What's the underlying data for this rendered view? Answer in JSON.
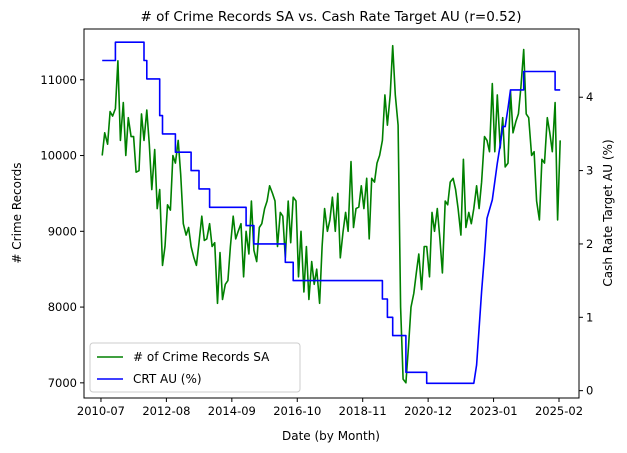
{
  "chart_data": {
    "type": "line",
    "title": "# of Crime Records SA vs. Cash Rate Target AU (r=0.52)",
    "xlabel": "Date (by Month)",
    "ylabel": "# Crime Records",
    "y2label": "Cash Rate Target AU (%)",
    "x_ticks": [
      "2010-07",
      "2012-08",
      "2014-09",
      "2016-10",
      "2018-11",
      "2020-12",
      "2023-01",
      "2025-02"
    ],
    "y_ticks": [
      7000,
      8000,
      9000,
      10000,
      11000
    ],
    "y2_ticks": [
      0,
      1,
      2,
      3,
      4
    ],
    "ylim": [
      6800,
      11670
    ],
    "y2lim": [
      -0.1,
      4.93
    ],
    "legend_position": "lower-left",
    "series": [
      {
        "name": "# of Crime Records SA",
        "color": "#008000",
        "axis": "left",
        "x": [
          2010.54,
          2010.62,
          2010.71,
          2010.79,
          2010.87,
          2010.96,
          2011.04,
          2011.12,
          2011.21,
          2011.29,
          2011.37,
          2011.46,
          2011.54,
          2011.62,
          2011.71,
          2011.79,
          2011.87,
          2011.96,
          2012.04,
          2012.12,
          2012.21,
          2012.29,
          2012.37,
          2012.46,
          2012.54,
          2012.62,
          2012.71,
          2012.79,
          2012.87,
          2012.96,
          2013.04,
          2013.12,
          2013.21,
          2013.29,
          2013.37,
          2013.46,
          2013.54,
          2013.62,
          2013.71,
          2013.79,
          2013.87,
          2013.96,
          2014.04,
          2014.12,
          2014.21,
          2014.29,
          2014.37,
          2014.46,
          2014.54,
          2014.62,
          2014.71,
          2014.79,
          2014.87,
          2014.96,
          2015.04,
          2015.12,
          2015.21,
          2015.29,
          2015.37,
          2015.46,
          2015.54,
          2015.62,
          2015.71,
          2015.79,
          2015.87,
          2015.96,
          2016.04,
          2016.12,
          2016.21,
          2016.29,
          2016.37,
          2016.46,
          2016.54,
          2016.62,
          2016.71,
          2016.79,
          2016.87,
          2016.96,
          2017.04,
          2017.12,
          2017.21,
          2017.29,
          2017.37,
          2017.46,
          2017.54,
          2017.62,
          2017.71,
          2017.79,
          2017.87,
          2017.96,
          2018.04,
          2018.12,
          2018.21,
          2018.29,
          2018.37,
          2018.46,
          2018.54,
          2018.62,
          2018.71,
          2018.79,
          2018.87,
          2018.96,
          2019.04,
          2019.12,
          2019.21,
          2019.29,
          2019.37,
          2019.46,
          2019.54,
          2019.62,
          2019.71,
          2019.79,
          2019.87,
          2019.96,
          2020.04,
          2020.12,
          2020.21,
          2020.29,
          2020.37,
          2020.46,
          2020.54,
          2020.62,
          2020.71,
          2020.79,
          2020.87,
          2020.96,
          2021.04,
          2021.12,
          2021.21,
          2021.29,
          2021.37,
          2021.46,
          2021.54,
          2021.62,
          2021.71,
          2021.79,
          2021.87,
          2021.96,
          2022.04,
          2022.12,
          2022.21,
          2022.29,
          2022.37,
          2022.46,
          2022.54,
          2022.62,
          2022.71,
          2022.79,
          2022.87,
          2022.96,
          2023.04,
          2023.12,
          2023.21,
          2023.29,
          2023.37,
          2023.46,
          2023.54,
          2023.62,
          2023.71,
          2023.79,
          2023.87,
          2023.96,
          2024.04,
          2024.12,
          2024.21,
          2024.29,
          2024.37,
          2024.46,
          2024.54,
          2024.62,
          2024.71,
          2024.79,
          2024.87,
          2024.96,
          2025.04,
          2025.12
        ],
        "values": [
          10000,
          10300,
          10150,
          10580,
          10520,
          10620,
          11250,
          10200,
          10700,
          10000,
          10500,
          10250,
          10250,
          9780,
          9800,
          10550,
          10200,
          10600,
          10150,
          9550,
          10080,
          9300,
          9550,
          8550,
          8800,
          9350,
          9280,
          10000,
          9900,
          10200,
          9750,
          9100,
          8950,
          9050,
          8800,
          8650,
          8550,
          8850,
          9200,
          8880,
          8900,
          9100,
          8800,
          8850,
          8050,
          8720,
          8100,
          8300,
          8350,
          8800,
          9200,
          8900,
          9000,
          9100,
          8400,
          9000,
          8700,
          9400,
          8750,
          8600,
          9050,
          9100,
          9300,
          9400,
          9600,
          9500,
          9400,
          8800,
          9250,
          9200,
          8650,
          9400,
          8850,
          9450,
          9400,
          8400,
          9000,
          8200,
          8800,
          8100,
          8600,
          8300,
          8500,
          8050,
          8800,
          9300,
          9000,
          9150,
          9450,
          9000,
          9500,
          8650,
          9000,
          9250,
          9000,
          9920,
          9050,
          9300,
          9320,
          9600,
          9300,
          9700,
          8900,
          9700,
          9650,
          9900,
          10000,
          10200,
          10800,
          10400,
          10800,
          11450,
          10800,
          10400,
          8000,
          7050,
          7000,
          7480,
          8000,
          8180,
          8450,
          8700,
          8230,
          8800,
          8800,
          8400,
          9250,
          9000,
          9300,
          8900,
          8450,
          9400,
          9350,
          9650,
          9700,
          9550,
          9300,
          8950,
          9950,
          9050,
          9250,
          9100,
          9300,
          9600,
          9300,
          9650,
          10250,
          10200,
          10050,
          10950,
          10050,
          10800,
          10100,
          10500,
          9850,
          9900,
          10850,
          10300,
          10450,
          10550,
          10900,
          11400,
          10550,
          10500,
          10000,
          10050,
          9400,
          9150,
          9950,
          9900,
          10500,
          10300,
          10050,
          10700,
          9150,
          10200
        ]
      },
      {
        "name": "CRT AU (%)",
        "color": "#0000ff",
        "axis": "right",
        "points": [
          [
            2010.54,
            4.5
          ],
          [
            2010.96,
            4.5
          ],
          [
            2010.96,
            4.75
          ],
          [
            2011.87,
            4.75
          ],
          [
            2011.87,
            4.5
          ],
          [
            2011.96,
            4.5
          ],
          [
            2011.96,
            4.25
          ],
          [
            2012.37,
            4.25
          ],
          [
            2012.37,
            3.75
          ],
          [
            2012.46,
            3.75
          ],
          [
            2012.46,
            3.5
          ],
          [
            2012.87,
            3.5
          ],
          [
            2012.87,
            3.25
          ],
          [
            2013.37,
            3.25
          ],
          [
            2013.37,
            3.0
          ],
          [
            2013.62,
            3.0
          ],
          [
            2013.62,
            2.75
          ],
          [
            2013.96,
            2.75
          ],
          [
            2013.96,
            2.5
          ],
          [
            2015.12,
            2.5
          ],
          [
            2015.12,
            2.25
          ],
          [
            2015.37,
            2.25
          ],
          [
            2015.37,
            2.0
          ],
          [
            2016.37,
            2.0
          ],
          [
            2016.37,
            1.75
          ],
          [
            2016.62,
            1.75
          ],
          [
            2016.62,
            1.5
          ],
          [
            2019.46,
            1.5
          ],
          [
            2019.46,
            1.25
          ],
          [
            2019.62,
            1.25
          ],
          [
            2019.62,
            1.0
          ],
          [
            2019.79,
            1.0
          ],
          [
            2019.79,
            0.75
          ],
          [
            2020.21,
            0.75
          ],
          [
            2020.21,
            0.25
          ],
          [
            2020.87,
            0.25
          ],
          [
            2020.87,
            0.1
          ],
          [
            2022.37,
            0.1
          ],
          [
            2022.46,
            0.35
          ],
          [
            2022.54,
            0.85
          ],
          [
            2022.62,
            1.35
          ],
          [
            2022.71,
            1.85
          ],
          [
            2022.79,
            2.35
          ],
          [
            2022.96,
            2.6
          ],
          [
            2023.04,
            2.85
          ],
          [
            2023.12,
            3.1
          ],
          [
            2023.21,
            3.35
          ],
          [
            2023.29,
            3.6
          ],
          [
            2023.37,
            3.6
          ],
          [
            2023.46,
            3.85
          ],
          [
            2023.54,
            4.1
          ],
          [
            2023.96,
            4.1
          ],
          [
            2023.96,
            4.35
          ],
          [
            2024.96,
            4.35
          ],
          [
            2024.96,
            4.1
          ],
          [
            2025.12,
            4.1
          ]
        ]
      }
    ]
  }
}
